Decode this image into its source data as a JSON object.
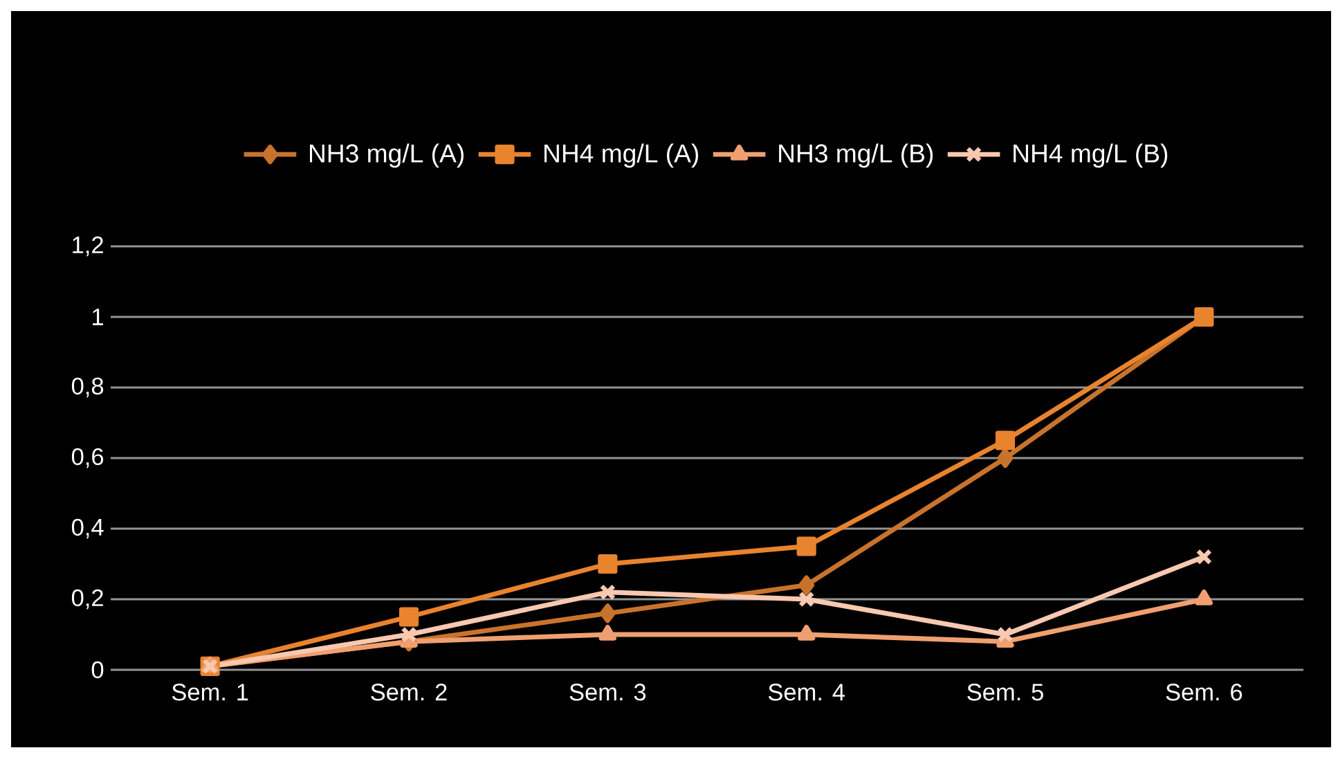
{
  "chart_data": {
    "type": "line",
    "categories": [
      "Sem. 1",
      "Sem. 2",
      "Sem. 3",
      "Sem. 4",
      "Sem. 5",
      "Sem. 6"
    ],
    "series": [
      {
        "name": "NH3 mg/L (A)",
        "color": "#c8732c",
        "marker": "diamond",
        "values": [
          0.01,
          0.08,
          0.16,
          0.24,
          0.6,
          1.0
        ]
      },
      {
        "name": "NH4 mg/L (A)",
        "color": "#e8832e",
        "marker": "square",
        "values": [
          0.01,
          0.15,
          0.3,
          0.35,
          0.65,
          1.0
        ]
      },
      {
        "name": "NH3 mg/L (B)",
        "color": "#f0a070",
        "marker": "triangle",
        "values": [
          0.01,
          0.08,
          0.1,
          0.1,
          0.08,
          0.2
        ]
      },
      {
        "name": "NH4 mg/L (B)",
        "color": "#f8c8b0",
        "marker": "cross",
        "values": [
          0.01,
          0.1,
          0.22,
          0.2,
          0.1,
          0.32
        ]
      }
    ],
    "ylim": [
      0,
      1.2
    ],
    "yticks": [
      {
        "value": 0,
        "label": "0"
      },
      {
        "value": 0.2,
        "label": "0,2"
      },
      {
        "value": 0.4,
        "label": "0,4"
      },
      {
        "value": 0.6,
        "label": "0,6"
      },
      {
        "value": 0.8,
        "label": "0,8"
      },
      {
        "value": 1,
        "label": "1"
      },
      {
        "value": 1.2,
        "label": "1,2"
      }
    ],
    "grid": "y",
    "legend": "top",
    "line_style": "solid"
  }
}
